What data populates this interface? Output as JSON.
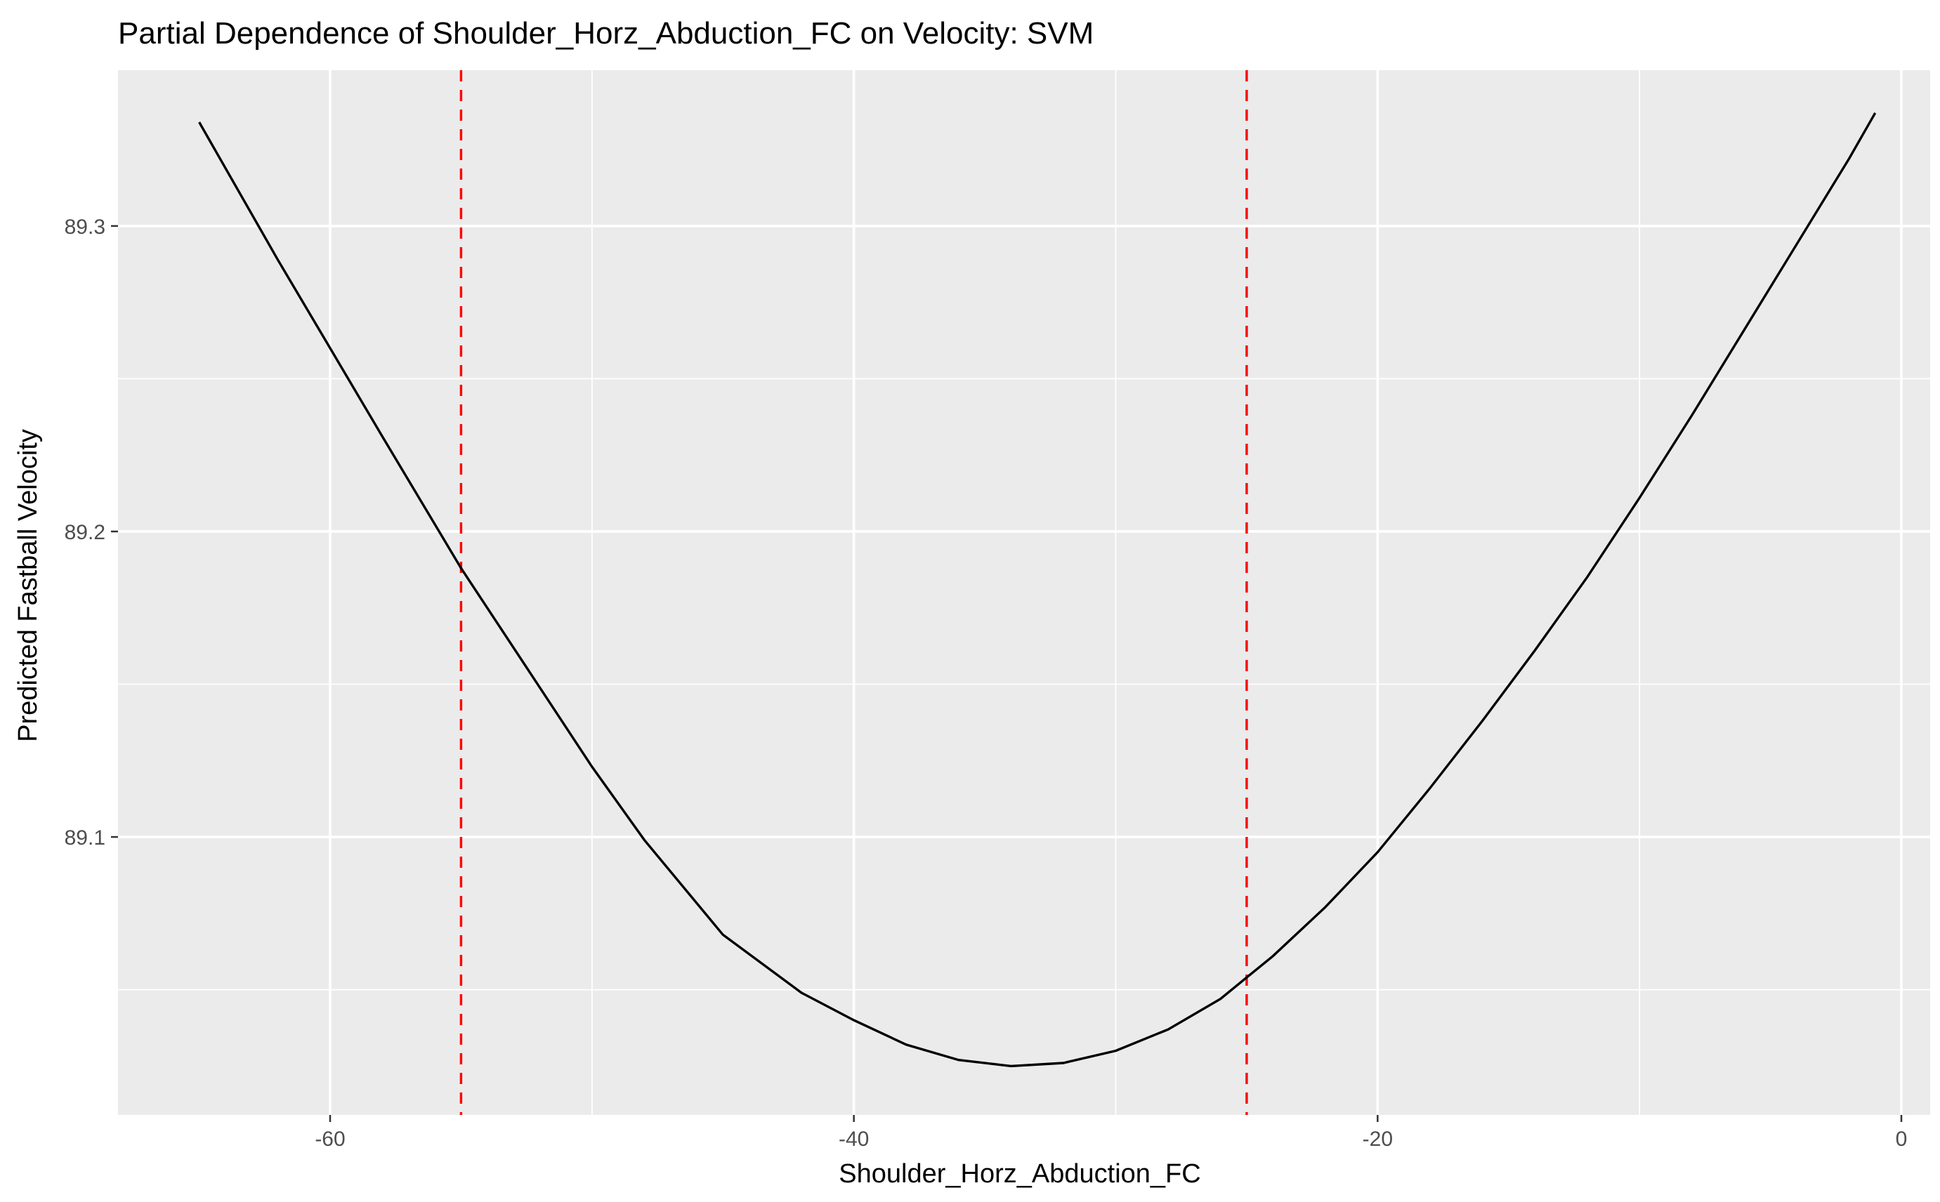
{
  "chart_data": {
    "type": "line",
    "title": "Partial Dependence of Shoulder_Horz_Abduction_FC on Velocity: SVM",
    "xlabel": "Shoulder_Horz_Abduction_FC",
    "ylabel": "Predicted Fastball Velocity",
    "xlim": [
      -68.1,
      1.1
    ],
    "ylim": [
      89.009,
      89.351
    ],
    "x_ticks": [
      -60,
      -40,
      -20,
      0
    ],
    "x_tick_labels": [
      "-60",
      "-40",
      "-20",
      "0"
    ],
    "x_minor_ticks": [
      -50,
      -30,
      -10
    ],
    "y_ticks": [
      89.1,
      89.2,
      89.3
    ],
    "y_tick_labels": [
      "89.1",
      "89.2",
      "89.3"
    ],
    "y_minor_ticks": [
      89.05,
      89.15,
      89.25
    ],
    "grid": true,
    "background": "#ebebeb",
    "series": [
      {
        "color": "#000000",
        "x": [
          -65,
          -62,
          -60,
          -58,
          -55,
          -52,
          -50,
          -48,
          -45,
          -42,
          -40,
          -38,
          -36,
          -34,
          -32,
          -30,
          -28,
          -26,
          -25,
          -24,
          -22,
          -20,
          -18,
          -16,
          -14,
          -12,
          -10,
          -8,
          -6,
          -4,
          -2,
          -1
        ],
        "y": [
          89.334,
          89.289,
          89.26,
          89.231,
          89.188,
          89.149,
          89.123,
          89.099,
          89.068,
          89.049,
          89.04,
          89.032,
          89.027,
          89.025,
          89.026,
          89.03,
          89.037,
          89.047,
          89.054,
          89.061,
          89.077,
          89.095,
          89.116,
          89.138,
          89.161,
          89.185,
          89.211,
          89.238,
          89.266,
          89.294,
          89.322,
          89.337
        ]
      }
    ],
    "vlines": [
      {
        "x": -55,
        "color": "#ff0000",
        "style": "dashed"
      },
      {
        "x": -25,
        "color": "#ff0000",
        "style": "dashed"
      }
    ]
  }
}
